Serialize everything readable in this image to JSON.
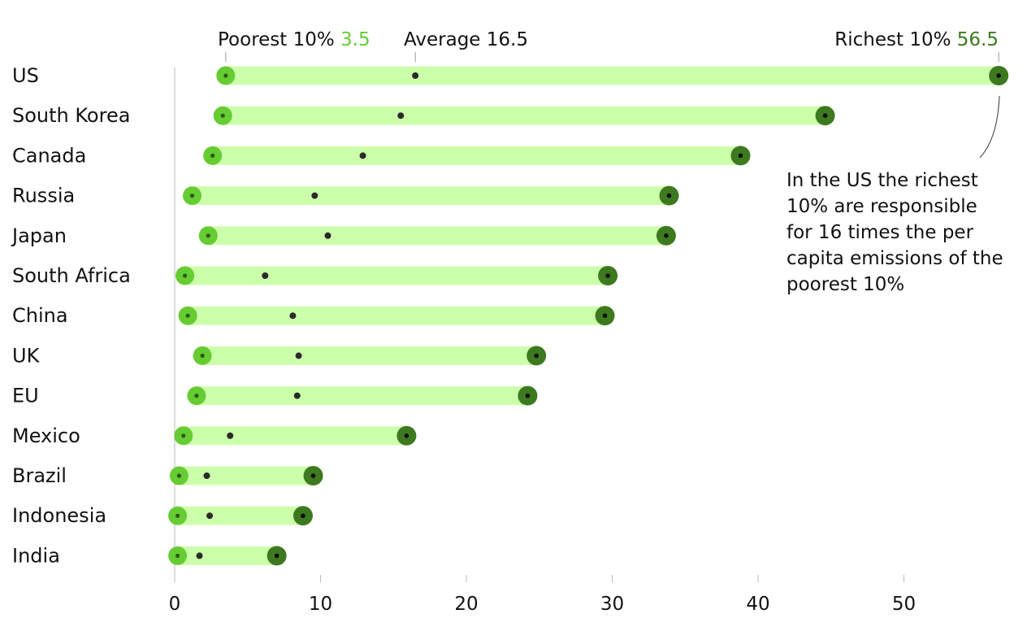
{
  "colors": {
    "bar": "#ccffaa",
    "poorest": "#66cc33",
    "richest": "#3d7a1f",
    "average": "#2a2a2a",
    "axis": "#bbbbbb",
    "label_green_light": "#66cc33",
    "label_green_dark": "#3d7a1f"
  },
  "header": {
    "poorest_label": "Poorest 10%",
    "poorest_value": "3.5",
    "average_label": "Average",
    "average_value": "16.5",
    "richest_label": "Richest 10%",
    "richest_value": "56.5"
  },
  "annotation": {
    "lines": [
      "In the US the richest",
      "10% are responsible",
      "for 16 times the per",
      "capita emissions of the",
      "poorest 10%"
    ]
  },
  "chart_data": {
    "type": "dot-range",
    "categories": [
      "US",
      "South Korea",
      "Canada",
      "Russia",
      "Japan",
      "South Africa",
      "China",
      "UK",
      "EU",
      "Mexico",
      "Brazil",
      "Indonesia",
      "India"
    ],
    "series": [
      {
        "name": "Poorest 10%",
        "values": [
          3.5,
          3.3,
          2.6,
          1.2,
          2.3,
          0.7,
          0.9,
          1.9,
          1.5,
          0.6,
          0.3,
          0.2,
          0.2
        ]
      },
      {
        "name": "Average",
        "values": [
          16.5,
          15.5,
          12.9,
          9.6,
          10.5,
          6.2,
          8.1,
          8.5,
          8.4,
          3.8,
          2.2,
          2.4,
          1.7
        ]
      },
      {
        "name": "Richest 10%",
        "values": [
          56.5,
          44.6,
          38.8,
          33.9,
          33.7,
          29.7,
          29.5,
          24.8,
          24.2,
          15.9,
          9.5,
          8.8,
          7.0
        ]
      }
    ],
    "x_ticks": [
      0,
      10,
      20,
      30,
      40,
      50
    ],
    "xlim": [
      0,
      60
    ]
  }
}
